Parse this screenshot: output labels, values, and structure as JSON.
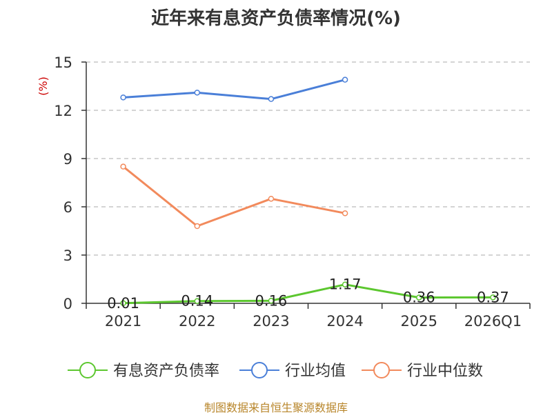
{
  "chart_data": {
    "type": "line",
    "title": "近年来有息资产负债率情况(%)",
    "ylabel": "(%)",
    "xlabel": "",
    "categories": [
      "2021",
      "2022",
      "2023",
      "2024",
      "2025",
      "2026Q1"
    ],
    "ylim": [
      0,
      15
    ],
    "yticks": [
      0,
      3,
      6,
      9,
      12,
      15
    ],
    "grid": true,
    "legend_position": "bottom",
    "series": [
      {
        "name": "有息资产负债率",
        "color": "#5cc72f",
        "values": [
          0.01,
          0.14,
          0.16,
          1.17,
          0.36,
          0.37
        ],
        "labels": [
          "0.01",
          "0.14",
          "0.16",
          "1.17",
          "0.36",
          "0.37"
        ]
      },
      {
        "name": "行业均值",
        "color": "#4a7fd8",
        "values": [
          12.8,
          13.1,
          12.7,
          13.9,
          null,
          null
        ]
      },
      {
        "name": "行业中位数",
        "color": "#f28a5c",
        "values": [
          8.5,
          4.8,
          6.5,
          5.6,
          null,
          null
        ]
      }
    ]
  },
  "footer": {
    "source": "制图数据来自恒生聚源数据库"
  },
  "colors": {
    "axis": "#333333",
    "grid": "#aaaaaa",
    "ylabel": "#cc0000",
    "title": "#333333",
    "source": "#b8862b"
  }
}
